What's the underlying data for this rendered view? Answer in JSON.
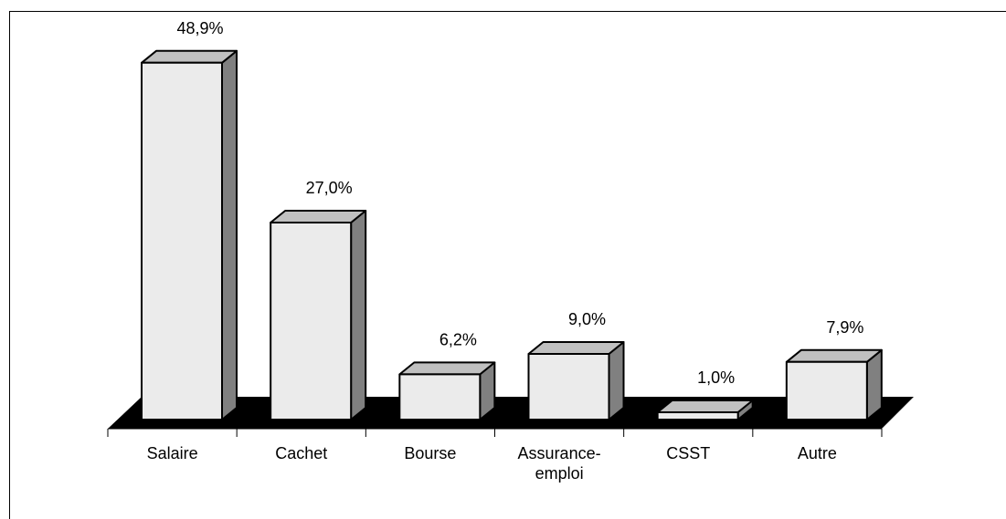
{
  "chart_data": {
    "type": "bar3d",
    "categories": [
      "Salaire",
      "Cachet",
      "Bourse",
      "Assurance-emploi",
      "CSST",
      "Autre"
    ],
    "values": [
      48.9,
      27.0,
      6.2,
      9.0,
      1.0,
      7.9
    ],
    "value_labels": [
      "48,9%",
      "27,0%",
      "6,2%",
      "9,0%",
      "1,0%",
      "7,9%"
    ],
    "color": "#ebebeb"
  }
}
